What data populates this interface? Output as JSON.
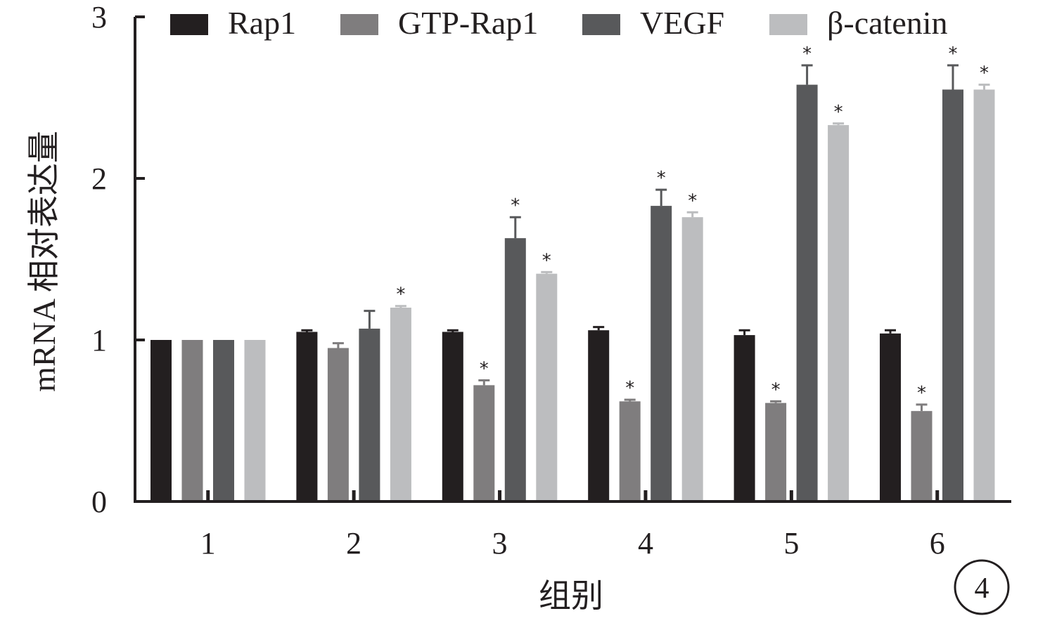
{
  "chart_data": {
    "type": "bar",
    "xlabel": "组别",
    "ylabel": "mRNA 相对表达量",
    "ylim": [
      0,
      3
    ],
    "yticks": [
      0,
      1,
      2,
      3
    ],
    "categories": [
      "1",
      "2",
      "3",
      "4",
      "5",
      "6"
    ],
    "legend_position": "top",
    "series": [
      {
        "name": "Rap1",
        "color": "#231f20",
        "values": [
          1.0,
          1.05,
          1.05,
          1.06,
          1.03,
          1.04
        ],
        "errors": [
          0.0,
          0.01,
          0.01,
          0.02,
          0.03,
          0.02
        ],
        "significant": [
          false,
          false,
          false,
          false,
          false,
          false
        ]
      },
      {
        "name": "GTP-Rap1",
        "color": "#7f7d7e",
        "values": [
          1.0,
          0.95,
          0.72,
          0.62,
          0.61,
          0.56
        ],
        "errors": [
          0.0,
          0.03,
          0.03,
          0.01,
          0.01,
          0.04
        ],
        "significant": [
          false,
          false,
          true,
          true,
          true,
          true
        ]
      },
      {
        "name": "VEGF",
        "color": "#58595b",
        "values": [
          1.0,
          1.07,
          1.63,
          1.83,
          2.58,
          2.55
        ],
        "errors": [
          0.0,
          0.11,
          0.13,
          0.1,
          0.12,
          0.15
        ],
        "significant": [
          false,
          false,
          true,
          true,
          true,
          true
        ]
      },
      {
        "name": "β-catenin",
        "color": "#bcbdbf",
        "values": [
          1.0,
          1.2,
          1.41,
          1.76,
          2.33,
          2.55
        ],
        "errors": [
          0.0,
          0.01,
          0.01,
          0.03,
          0.01,
          0.03
        ],
        "significant": [
          false,
          true,
          true,
          true,
          true,
          true
        ]
      }
    ],
    "significance_marker": "*",
    "panel_label": "4"
  }
}
